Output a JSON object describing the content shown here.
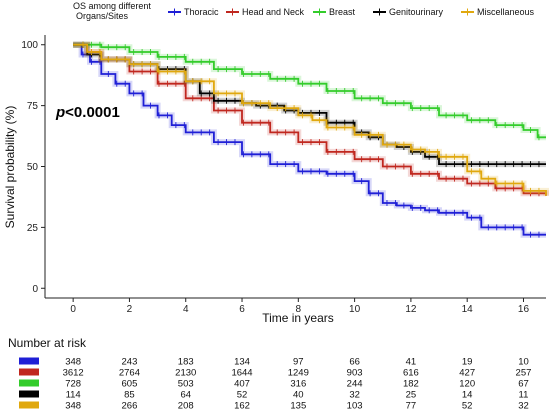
{
  "chart_data": {
    "type": "line",
    "title": "",
    "xlabel": "Time in years",
    "ylabel": "Survival probability (%)",
    "xlim": [
      -1,
      16.8
    ],
    "ylim": [
      -4,
      104
    ],
    "x_ticks": [
      0,
      2,
      4,
      6,
      8,
      10,
      12,
      14,
      16
    ],
    "y_ticks": [
      0,
      25,
      50,
      75,
      100
    ],
    "grid": false,
    "legend": {
      "title_line1": "OS among different",
      "title_line2": "Organs/Sites",
      "placement": "top"
    },
    "annotation": {
      "p_prefix": "p",
      "p_value": "<0.0001"
    },
    "series": [
      {
        "name": "Thoracic",
        "color": "#1f1fd6",
        "points": [
          [
            0,
            100
          ],
          [
            0.3,
            96
          ],
          [
            0.6,
            93
          ],
          [
            1,
            88
          ],
          [
            1.5,
            84
          ],
          [
            2,
            80
          ],
          [
            2.5,
            75
          ],
          [
            3,
            71
          ],
          [
            3.5,
            67
          ],
          [
            4,
            64
          ],
          [
            5,
            60
          ],
          [
            6,
            55
          ],
          [
            7,
            51
          ],
          [
            8,
            48
          ],
          [
            9,
            47
          ],
          [
            10,
            44
          ],
          [
            10.5,
            39
          ],
          [
            11,
            35
          ],
          [
            11.5,
            34
          ],
          [
            12,
            33
          ],
          [
            12.5,
            32
          ],
          [
            13,
            31
          ],
          [
            13.5,
            31
          ],
          [
            14,
            29
          ],
          [
            14.5,
            25
          ],
          [
            15,
            25
          ],
          [
            15.5,
            25
          ],
          [
            16,
            22
          ],
          [
            16.8,
            22
          ]
        ]
      },
      {
        "name": "Head and Neck",
        "color": "#c0271f",
        "points": [
          [
            0,
            100
          ],
          [
            0.5,
            97
          ],
          [
            1,
            94
          ],
          [
            2,
            89
          ],
          [
            3,
            84
          ],
          [
            4,
            78
          ],
          [
            5,
            73
          ],
          [
            6,
            68
          ],
          [
            7,
            64
          ],
          [
            8,
            60
          ],
          [
            9,
            56
          ],
          [
            10,
            53
          ],
          [
            11,
            50
          ],
          [
            12,
            47
          ],
          [
            13,
            45
          ],
          [
            14,
            43
          ],
          [
            15,
            41
          ],
          [
            16,
            39
          ],
          [
            16.8,
            38
          ]
        ]
      },
      {
        "name": "Breast",
        "color": "#33cc2b",
        "points": [
          [
            0,
            100
          ],
          [
            1,
            99
          ],
          [
            2,
            97
          ],
          [
            3,
            95
          ],
          [
            4,
            93
          ],
          [
            5,
            90
          ],
          [
            6,
            88
          ],
          [
            7,
            86
          ],
          [
            8,
            84
          ],
          [
            9,
            81
          ],
          [
            10,
            78
          ],
          [
            11,
            76
          ],
          [
            12,
            74
          ],
          [
            13,
            71
          ],
          [
            14,
            69
          ],
          [
            15,
            67
          ],
          [
            16,
            65
          ],
          [
            16.5,
            62
          ],
          [
            16.8,
            62
          ]
        ]
      },
      {
        "name": "Genitourinary",
        "color": "#000000",
        "points": [
          [
            0,
            100
          ],
          [
            0.5,
            96
          ],
          [
            1,
            94
          ],
          [
            2,
            92
          ],
          [
            3,
            90
          ],
          [
            4,
            85
          ],
          [
            4.5,
            80
          ],
          [
            5,
            77
          ],
          [
            6,
            76
          ],
          [
            6.5,
            75
          ],
          [
            7,
            75
          ],
          [
            7.5,
            73
          ],
          [
            8,
            72
          ],
          [
            9,
            68
          ],
          [
            10,
            64
          ],
          [
            10.5,
            62
          ],
          [
            11,
            59
          ],
          [
            11.5,
            58
          ],
          [
            12,
            56
          ],
          [
            12.5,
            54
          ],
          [
            13,
            51
          ],
          [
            14,
            51
          ],
          [
            15,
            51
          ],
          [
            16,
            51
          ],
          [
            16.8,
            51
          ]
        ]
      },
      {
        "name": "Miscellaneous",
        "color": "#e0a80e",
        "points": [
          [
            0,
            100
          ],
          [
            0.5,
            97
          ],
          [
            1,
            94
          ],
          [
            2,
            92
          ],
          [
            3,
            89
          ],
          [
            4,
            85
          ],
          [
            5,
            80
          ],
          [
            6,
            76
          ],
          [
            7,
            74
          ],
          [
            8,
            71
          ],
          [
            8.5,
            69
          ],
          [
            9,
            66
          ],
          [
            10,
            63
          ],
          [
            11,
            59
          ],
          [
            12,
            57
          ],
          [
            12.5,
            56
          ],
          [
            13,
            54
          ],
          [
            14,
            48
          ],
          [
            14.5,
            45
          ],
          [
            15,
            43
          ],
          [
            16,
            40
          ],
          [
            16.8,
            38
          ]
        ]
      }
    ],
    "risk_table": {
      "title": "Number at risk",
      "times": [
        0,
        2,
        4,
        6,
        8,
        10,
        12,
        14,
        16
      ],
      "rows": [
        {
          "color": "#1f1fd6",
          "values": [
            "348",
            "243",
            "183",
            "134",
            "97",
            "66",
            "41",
            "19",
            "10"
          ]
        },
        {
          "color": "#c0271f",
          "values": [
            "3612",
            "2764",
            "2130",
            "1644",
            "1249",
            "903",
            "616",
            "427",
            "257"
          ]
        },
        {
          "color": "#33cc2b",
          "values": [
            "728",
            "605",
            "503",
            "407",
            "316",
            "244",
            "182",
            "120",
            "67"
          ]
        },
        {
          "color": "#000000",
          "values": [
            "114",
            "85",
            "64",
            "52",
            "40",
            "32",
            "25",
            "14",
            "11"
          ]
        },
        {
          "color": "#e0a80e",
          "values": [
            "348",
            "266",
            "208",
            "162",
            "135",
            "103",
            "77",
            "52",
            "32"
          ]
        }
      ]
    }
  }
}
